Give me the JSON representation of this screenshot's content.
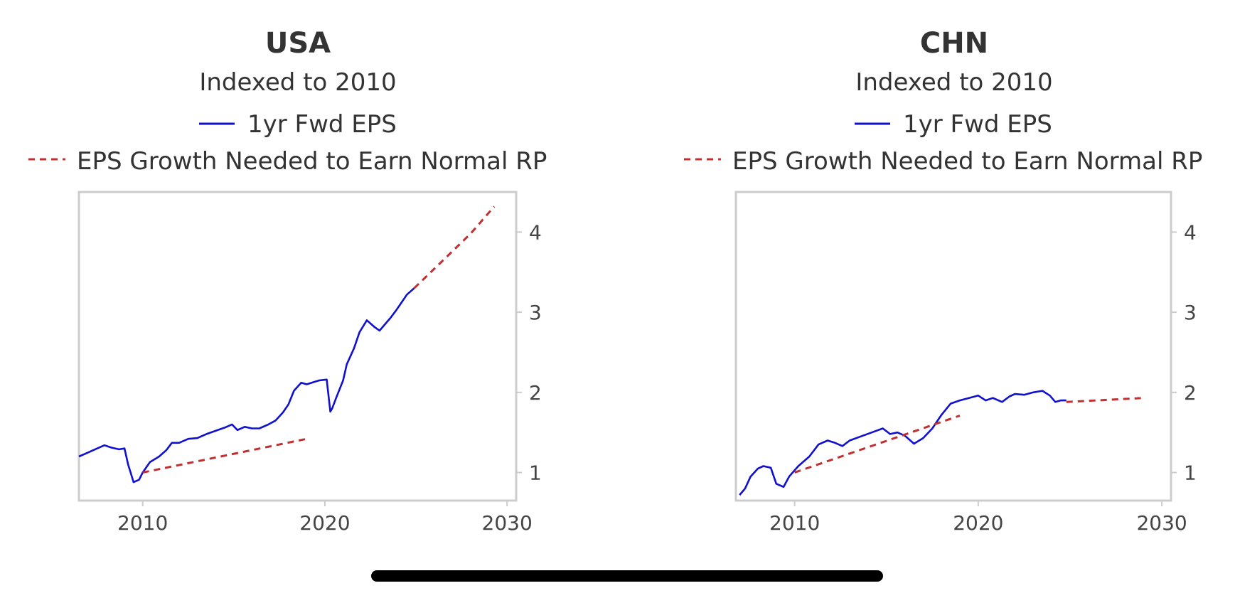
{
  "colors": {
    "eps": "#1010d0",
    "needed": "#c03030",
    "text": "#333333",
    "frame": "#cccccc"
  },
  "home_indicator": "home-indicator-bar",
  "chart_data": [
    {
      "type": "line",
      "title": "USA",
      "subtitle": "Indexed to 2010",
      "legend": [
        "1yr Fwd EPS",
        "EPS Growth Needed to Earn Normal RP"
      ],
      "xlim": [
        2006.5,
        2030.5
      ],
      "ylim": [
        0.65,
        4.5
      ],
      "xticks": [
        2010,
        2020,
        2030
      ],
      "yticks": [
        1,
        2,
        3,
        4
      ],
      "yaxis_position": "right",
      "series": [
        {
          "name": "1yr Fwd EPS",
          "style": "solid",
          "x": [
            2006.5,
            2007.0,
            2007.5,
            2007.9,
            2008.3,
            2008.7,
            2009.0,
            2009.2,
            2009.5,
            2009.8,
            2010.0,
            2010.4,
            2010.9,
            2011.3,
            2011.6,
            2012.0,
            2012.5,
            2013.0,
            2013.5,
            2014.0,
            2014.5,
            2014.9,
            2015.2,
            2015.6,
            2016.0,
            2016.4,
            2016.9,
            2017.3,
            2017.7,
            2018.0,
            2018.3,
            2018.7,
            2019.0,
            2019.4,
            2019.7,
            2020.1,
            2020.3,
            2020.4,
            2020.6,
            2021.0,
            2021.2,
            2021.6,
            2021.9,
            2022.3,
            2022.7,
            2023.0,
            2023.3,
            2023.6,
            2023.9,
            2024.2,
            2024.5,
            2024.9
          ],
          "y": [
            1.2,
            1.25,
            1.3,
            1.34,
            1.31,
            1.29,
            1.3,
            1.1,
            0.88,
            0.91,
            1.0,
            1.13,
            1.2,
            1.28,
            1.37,
            1.37,
            1.42,
            1.43,
            1.48,
            1.52,
            1.56,
            1.6,
            1.53,
            1.57,
            1.55,
            1.55,
            1.6,
            1.65,
            1.75,
            1.85,
            2.02,
            2.12,
            2.1,
            2.13,
            2.15,
            2.16,
            1.76,
            1.8,
            1.92,
            2.15,
            2.35,
            2.55,
            2.75,
            2.9,
            2.82,
            2.77,
            2.85,
            2.93,
            3.02,
            3.12,
            3.22,
            3.3
          ]
        },
        {
          "name": "EPS Growth Needed to Earn Normal RP",
          "style": "dashed",
          "x": [
            2010.0,
            2019.0
          ],
          "y": [
            1.0,
            1.42
          ]
        },
        {
          "name": "EPS Growth Needed to Earn Normal RP",
          "style": "dashed",
          "x": [
            2024.9,
            2026.5,
            2028.0,
            2029.3
          ],
          "y": [
            3.3,
            3.65,
            3.98,
            4.32
          ]
        }
      ]
    },
    {
      "type": "line",
      "title": "CHN",
      "subtitle": "Indexed to 2010",
      "legend": [
        "1yr Fwd EPS",
        "EPS Growth Needed to Earn Normal RP"
      ],
      "xlim": [
        2006.8,
        2030.5
      ],
      "ylim": [
        0.65,
        4.5
      ],
      "xticks": [
        2010,
        2020,
        2030
      ],
      "yticks": [
        1,
        2,
        3,
        4
      ],
      "yaxis_position": "right",
      "series": [
        {
          "name": "1yr Fwd EPS",
          "style": "solid",
          "x": [
            2007.0,
            2007.3,
            2007.6,
            2008.0,
            2008.3,
            2008.7,
            2009.0,
            2009.4,
            2009.7,
            2010.2,
            2010.8,
            2011.3,
            2011.8,
            2012.2,
            2012.6,
            2013.0,
            2013.6,
            2014.2,
            2014.8,
            2015.2,
            2015.6,
            2016.0,
            2016.5,
            2017.0,
            2017.5,
            2018.0,
            2018.5,
            2019.0,
            2019.5,
            2020.0,
            2020.4,
            2020.8,
            2021.3,
            2021.7,
            2022.0,
            2022.5,
            2023.0,
            2023.5,
            2023.9,
            2024.2,
            2024.5,
            2024.8
          ],
          "y": [
            0.72,
            0.8,
            0.95,
            1.05,
            1.08,
            1.06,
            0.86,
            0.82,
            0.95,
            1.08,
            1.2,
            1.35,
            1.4,
            1.37,
            1.33,
            1.4,
            1.45,
            1.5,
            1.55,
            1.48,
            1.5,
            1.46,
            1.36,
            1.43,
            1.55,
            1.72,
            1.86,
            1.9,
            1.93,
            1.96,
            1.9,
            1.93,
            1.88,
            1.95,
            1.98,
            1.97,
            2.0,
            2.02,
            1.96,
            1.88,
            1.9,
            1.9
          ]
        },
        {
          "name": "EPS Growth Needed to Earn Normal RP",
          "style": "dashed",
          "x": [
            2010.0,
            2019.0
          ],
          "y": [
            1.0,
            1.71
          ]
        },
        {
          "name": "EPS Growth Needed to Earn Normal RP",
          "style": "dashed",
          "x": [
            2024.8,
            2029.0
          ],
          "y": [
            1.88,
            1.93
          ]
        }
      ]
    }
  ]
}
